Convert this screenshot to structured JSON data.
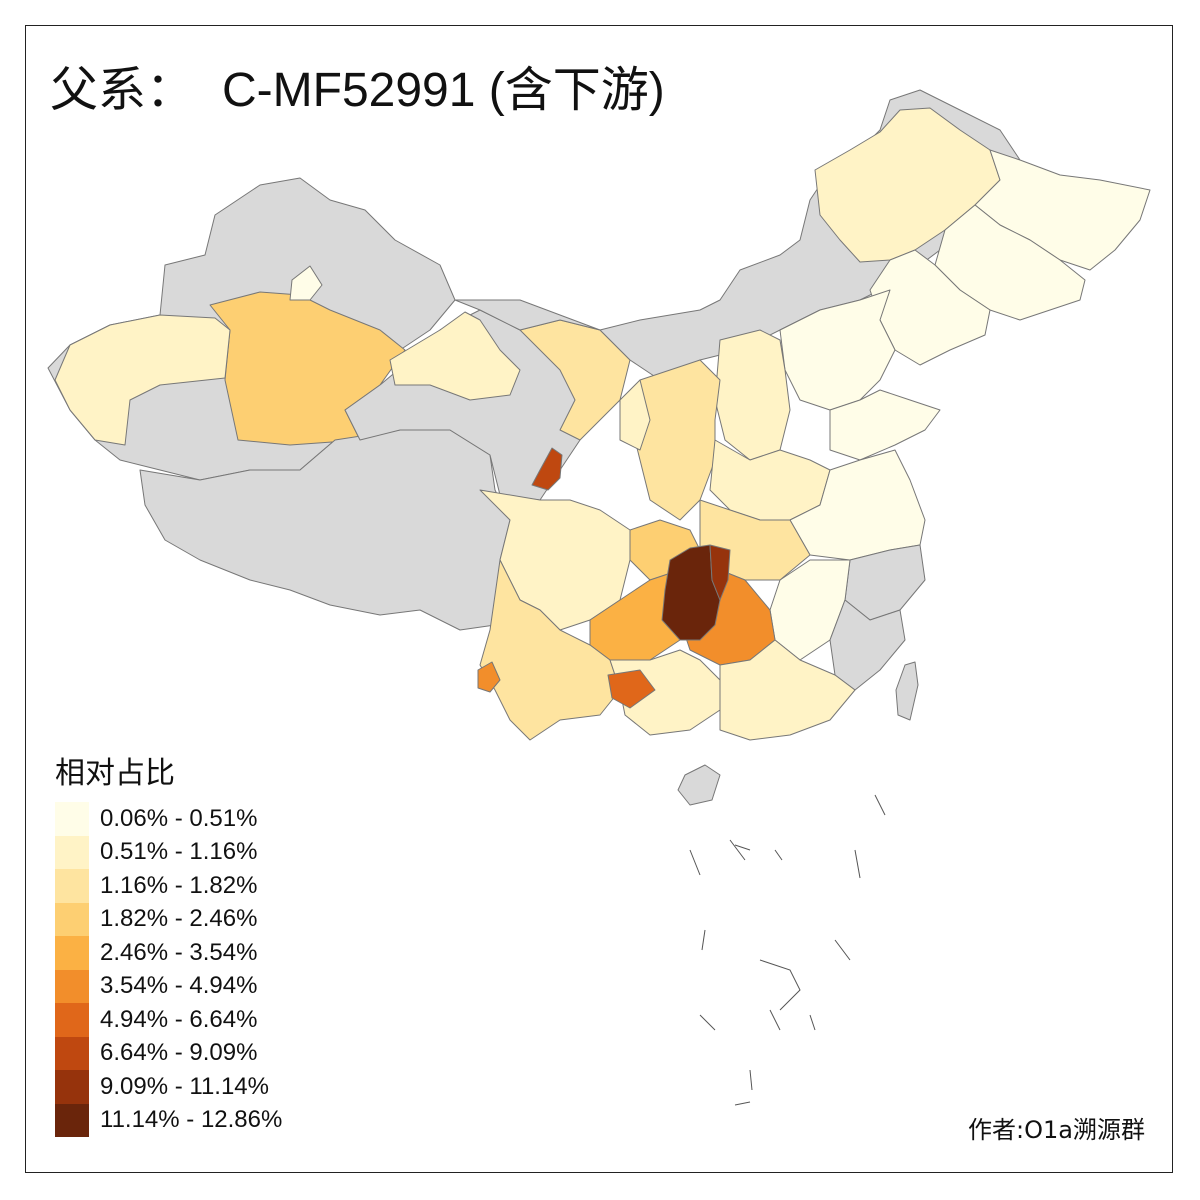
{
  "title": {
    "prefix": "父系：",
    "code": "C-MF52991 (含下游)"
  },
  "legend": {
    "title": "相对占比",
    "no_data_color": "#d9d9d9",
    "items": [
      {
        "label": "0.06% - 0.51%",
        "color": "#fffde8"
      },
      {
        "label": "0.51% - 1.16%",
        "color": "#fff3c6"
      },
      {
        "label": "1.16% - 1.82%",
        "color": "#fee4a0"
      },
      {
        "label": "1.82% - 2.46%",
        "color": "#fdcf72"
      },
      {
        "label": "2.46% - 3.54%",
        "color": "#fbb144"
      },
      {
        "label": "3.54% - 4.94%",
        "color": "#f28e2b"
      },
      {
        "label": "4.94% - 6.64%",
        "color": "#e0671a"
      },
      {
        "label": "6.64% - 9.09%",
        "color": "#bf4810"
      },
      {
        "label": "9.09% - 11.14%",
        "color": "#96330c"
      },
      {
        "label": "11.14% - 12.86%",
        "color": "#6a250b"
      }
    ]
  },
  "author": "作者:O1a溯源群"
}
